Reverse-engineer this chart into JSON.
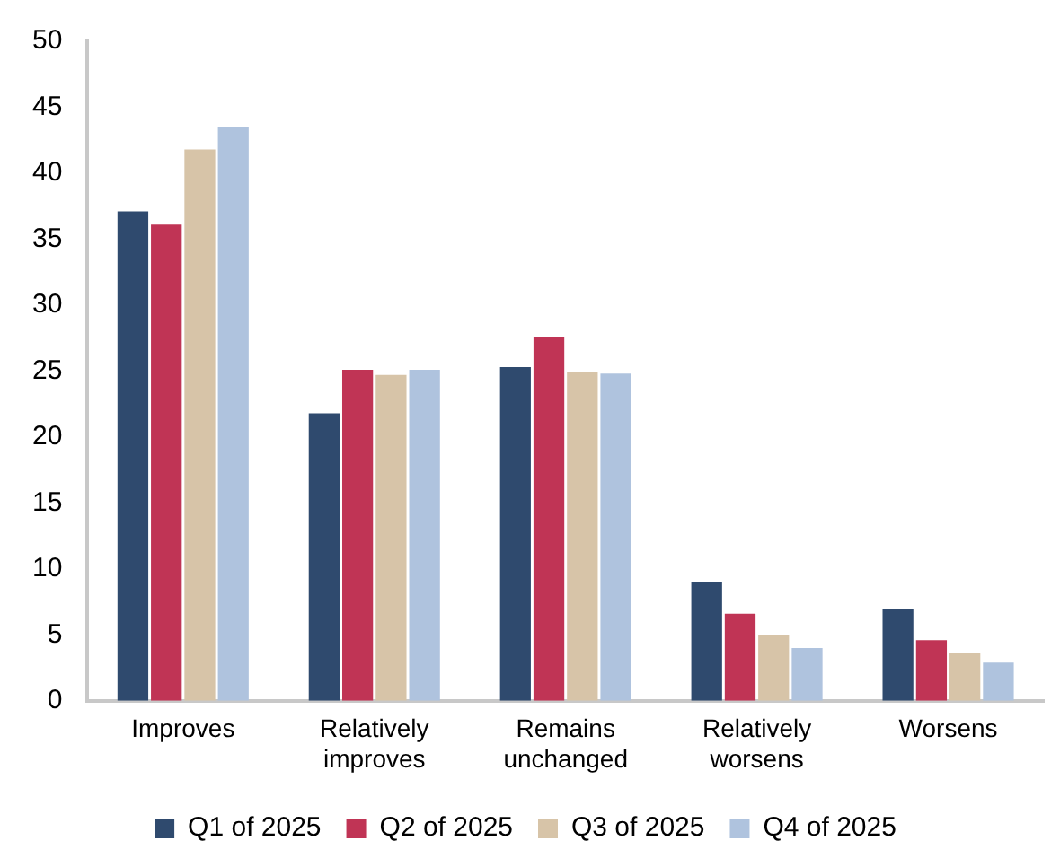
{
  "chart_data": {
    "type": "bar",
    "categories": [
      "Improves",
      "Relatively improves",
      "Remains unchanged",
      "Relatively worsens",
      "Worsens"
    ],
    "series": [
      {
        "name": "Q1 of 2025",
        "color": "#2f4a6e",
        "values": [
          37.1,
          21.8,
          25.3,
          9.0,
          7.0
        ]
      },
      {
        "name": "Q2 of 2025",
        "color": "#c03455",
        "values": [
          36.1,
          25.1,
          27.6,
          6.6,
          4.6
        ]
      },
      {
        "name": "Q3 of 2025",
        "color": "#d7c4a8",
        "values": [
          41.8,
          24.7,
          24.9,
          5.0,
          3.6
        ]
      },
      {
        "name": "Q4 of 2025",
        "color": "#afc3de",
        "values": [
          43.5,
          25.1,
          24.8,
          4.0,
          2.9
        ]
      }
    ],
    "ylim": [
      0,
      50
    ],
    "yticks": [
      0,
      5,
      10,
      15,
      20,
      25,
      30,
      35,
      40,
      45,
      50
    ],
    "grid": false,
    "legend": "bottom"
  }
}
